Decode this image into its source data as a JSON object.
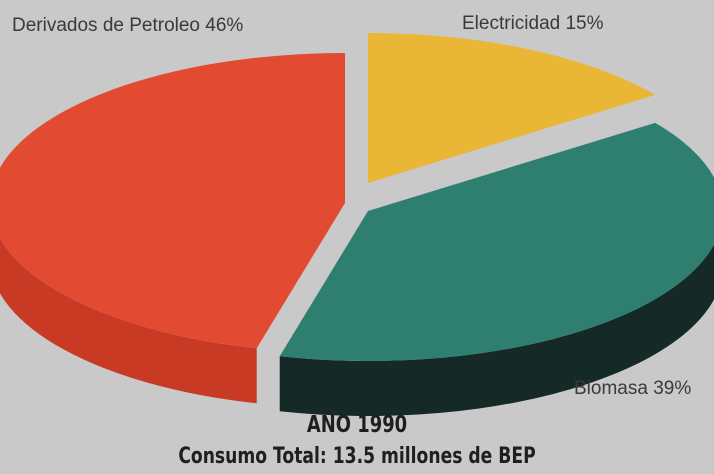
{
  "chart_data": {
    "type": "pie",
    "slices": [
      {
        "label": "Derivados de Petroleo",
        "value": 46,
        "label_text": "Derivados de Petroleo 46%",
        "color": "#e24b32",
        "side_color": "#c93a25"
      },
      {
        "label": "Electricidad",
        "value": 15,
        "label_text": "Electricidad 15%",
        "color": "#eab636",
        "side_color": "#1d1d1d"
      },
      {
        "label": "Biomasa",
        "value": 39,
        "label_text": "Biomasa 39%",
        "color": "#2e7f70",
        "side_color": "#152a26"
      }
    ],
    "title": "AÑO 1990",
    "subtitle": "Consumo Total: 13.5 millones de BEP",
    "style": "3d-exploded-pie"
  }
}
